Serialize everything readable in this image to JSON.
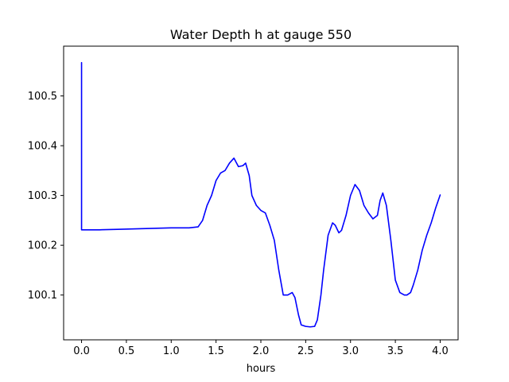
{
  "chart_data": {
    "type": "line",
    "title": "Water Depth h at gauge 550",
    "xlabel": "hours",
    "ylabel": "",
    "xlim": [
      -0.2,
      4.2
    ],
    "ylim": [
      100.01,
      100.6
    ],
    "xticks": [
      0.0,
      0.5,
      1.0,
      1.5,
      2.0,
      2.5,
      3.0,
      3.5,
      4.0
    ],
    "xtick_labels": [
      "0.0",
      "0.5",
      "1.0",
      "1.5",
      "2.0",
      "2.5",
      "3.0",
      "3.5",
      "4.0"
    ],
    "yticks": [
      100.1,
      100.2,
      100.3,
      100.4,
      100.5
    ],
    "ytick_labels": [
      "100.1",
      "100.2",
      "100.3",
      "100.4",
      "100.5"
    ],
    "grid": false,
    "series": [
      {
        "color": "#0000ff",
        "x": [
          0.0,
          0.0,
          0.0,
          0.2,
          0.4,
          0.6,
          0.8,
          1.0,
          1.1,
          1.2,
          1.3,
          1.35,
          1.4,
          1.45,
          1.5,
          1.55,
          1.6,
          1.65,
          1.7,
          1.75,
          1.8,
          1.83,
          1.87,
          1.9,
          1.95,
          2.0,
          2.05,
          2.1,
          2.15,
          2.2,
          2.25,
          2.3,
          2.35,
          2.38,
          2.42,
          2.45,
          2.5,
          2.55,
          2.6,
          2.63,
          2.67,
          2.7,
          2.75,
          2.8,
          2.83,
          2.87,
          2.9,
          2.95,
          3.0,
          3.05,
          3.1,
          3.15,
          3.2,
          3.25,
          3.3,
          3.33,
          3.36,
          3.4,
          3.45,
          3.5,
          3.55,
          3.6,
          3.63,
          3.67,
          3.7,
          3.75,
          3.8,
          3.85,
          3.9,
          3.95,
          4.0
        ],
        "y": [
          100.567,
          100.567,
          100.231,
          100.231,
          100.232,
          100.233,
          100.234,
          100.235,
          100.235,
          100.235,
          100.237,
          100.25,
          100.28,
          100.3,
          100.33,
          100.345,
          100.35,
          100.365,
          100.375,
          100.358,
          100.36,
          100.365,
          100.34,
          100.3,
          100.28,
          100.27,
          100.265,
          100.24,
          100.21,
          100.15,
          100.1,
          100.1,
          100.105,
          100.095,
          100.06,
          100.04,
          100.037,
          100.036,
          100.037,
          100.05,
          100.1,
          100.15,
          100.22,
          100.245,
          100.24,
          100.225,
          100.23,
          100.26,
          100.3,
          100.322,
          100.31,
          100.28,
          100.265,
          100.253,
          100.26,
          100.29,
          100.305,
          100.28,
          100.21,
          100.13,
          100.105,
          100.1,
          100.1,
          100.105,
          100.12,
          100.15,
          100.19,
          100.22,
          100.245,
          100.275,
          100.301
        ]
      }
    ]
  }
}
